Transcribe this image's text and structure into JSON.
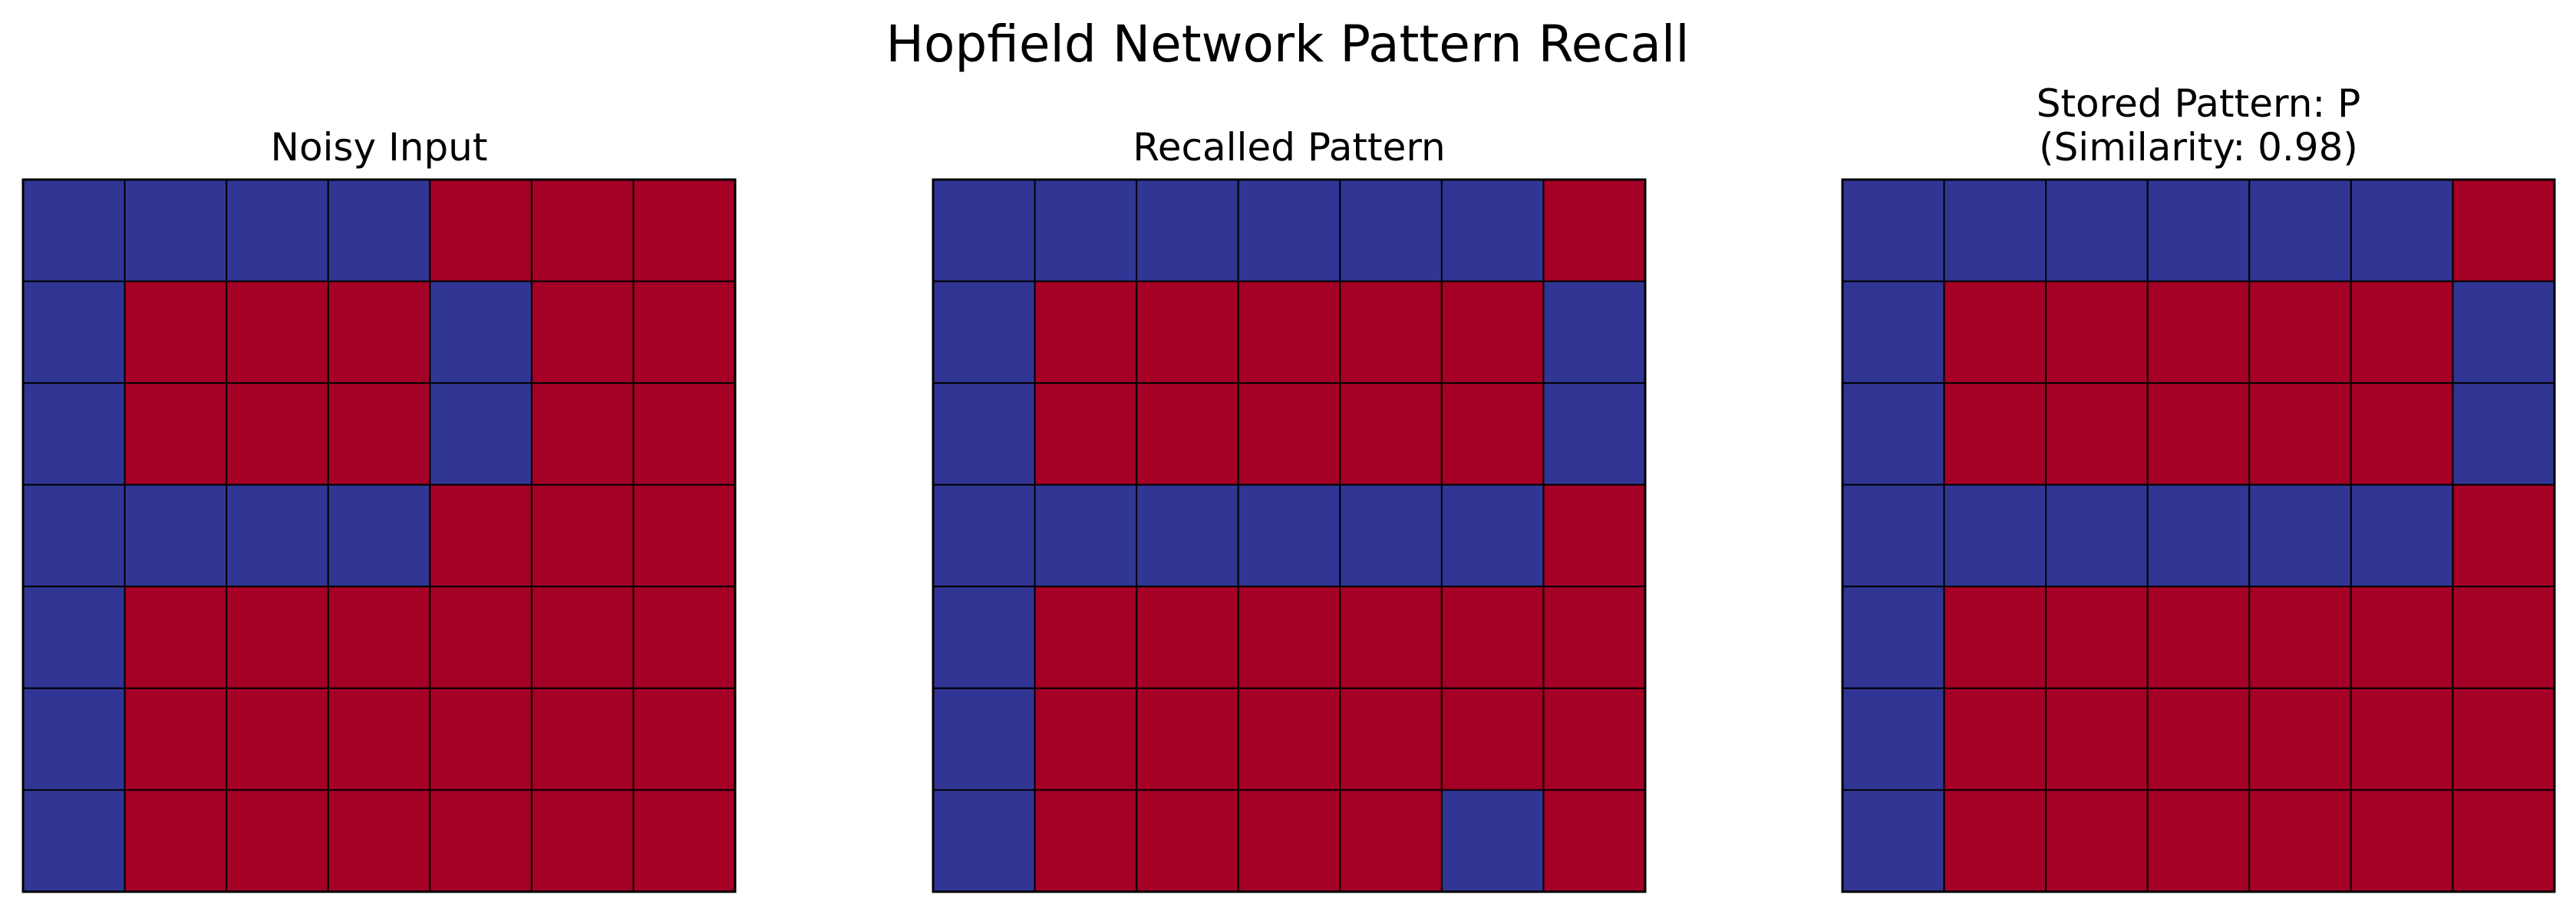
{
  "chart_data": {
    "type": "heatmap",
    "title": "Hopfield Network Pattern Recall",
    "colors": {
      "positive": "#a50026",
      "negative": "#313695",
      "border": "#000000",
      "background": "#ffffff"
    },
    "panels": [
      {
        "title_lines": [
          "Noisy Input"
        ],
        "grid": [
          [
            -1,
            -1,
            -1,
            -1,
            1,
            1,
            1
          ],
          [
            -1,
            1,
            1,
            1,
            -1,
            1,
            1
          ],
          [
            -1,
            1,
            1,
            1,
            -1,
            1,
            1
          ],
          [
            -1,
            -1,
            -1,
            -1,
            1,
            1,
            1
          ],
          [
            -1,
            1,
            1,
            1,
            1,
            1,
            1
          ],
          [
            -1,
            1,
            1,
            1,
            1,
            1,
            1
          ],
          [
            -1,
            1,
            1,
            1,
            1,
            1,
            1
          ]
        ]
      },
      {
        "title_lines": [
          "Recalled Pattern"
        ],
        "grid": [
          [
            -1,
            -1,
            -1,
            -1,
            -1,
            -1,
            1
          ],
          [
            -1,
            1,
            1,
            1,
            1,
            1,
            -1
          ],
          [
            -1,
            1,
            1,
            1,
            1,
            1,
            -1
          ],
          [
            -1,
            -1,
            -1,
            -1,
            -1,
            -1,
            1
          ],
          [
            -1,
            1,
            1,
            1,
            1,
            1,
            1
          ],
          [
            -1,
            1,
            1,
            1,
            1,
            1,
            1
          ],
          [
            -1,
            1,
            1,
            1,
            1,
            -1,
            1
          ]
        ]
      },
      {
        "title_lines": [
          "Stored Pattern: P",
          "(Similarity: 0.98)"
        ],
        "grid": [
          [
            -1,
            -1,
            -1,
            -1,
            -1,
            -1,
            1
          ],
          [
            -1,
            1,
            1,
            1,
            1,
            1,
            -1
          ],
          [
            -1,
            1,
            1,
            1,
            1,
            1,
            -1
          ],
          [
            -1,
            -1,
            -1,
            -1,
            -1,
            -1,
            1
          ],
          [
            -1,
            1,
            1,
            1,
            1,
            1,
            1
          ],
          [
            -1,
            1,
            1,
            1,
            1,
            1,
            1
          ],
          [
            -1,
            1,
            1,
            1,
            1,
            1,
            1
          ]
        ]
      }
    ]
  }
}
